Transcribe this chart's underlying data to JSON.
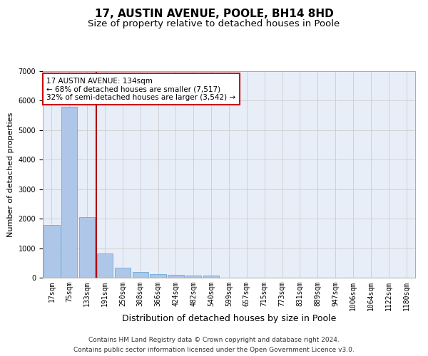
{
  "title": "17, AUSTIN AVENUE, POOLE, BH14 8HD",
  "subtitle": "Size of property relative to detached houses in Poole",
  "xlabel": "Distribution of detached houses by size in Poole",
  "ylabel": "Number of detached properties",
  "footer_line1": "Contains HM Land Registry data © Crown copyright and database right 2024.",
  "footer_line2": "Contains public sector information licensed under the Open Government Licence v3.0.",
  "annotation_line1": "17 AUSTIN AVENUE: 134sqm",
  "annotation_line2": "← 68% of detached houses are smaller (7,517)",
  "annotation_line3": "32% of semi-detached houses are larger (3,542) →",
  "bar_labels": [
    "17sqm",
    "75sqm",
    "133sqm",
    "191sqm",
    "250sqm",
    "308sqm",
    "366sqm",
    "424sqm",
    "482sqm",
    "540sqm",
    "599sqm",
    "657sqm",
    "715sqm",
    "773sqm",
    "831sqm",
    "889sqm",
    "947sqm",
    "1006sqm",
    "1064sqm",
    "1122sqm",
    "1180sqm"
  ],
  "bar_values": [
    1780,
    5800,
    2050,
    820,
    340,
    190,
    120,
    100,
    80,
    80,
    0,
    0,
    0,
    0,
    0,
    0,
    0,
    0,
    0,
    0,
    0
  ],
  "bar_color": "#aec6e8",
  "bar_edge_color": "#5a9fd4",
  "vline_x_index": 2,
  "vline_color": "#aa0000",
  "grid_color": "#cccccc",
  "background_color": "#e8eef8",
  "ylim": [
    0,
    7000
  ],
  "title_fontsize": 11,
  "subtitle_fontsize": 9.5,
  "xlabel_fontsize": 9,
  "ylabel_fontsize": 8,
  "tick_fontsize": 7,
  "footer_fontsize": 6.5,
  "annotation_fontsize": 7.5
}
